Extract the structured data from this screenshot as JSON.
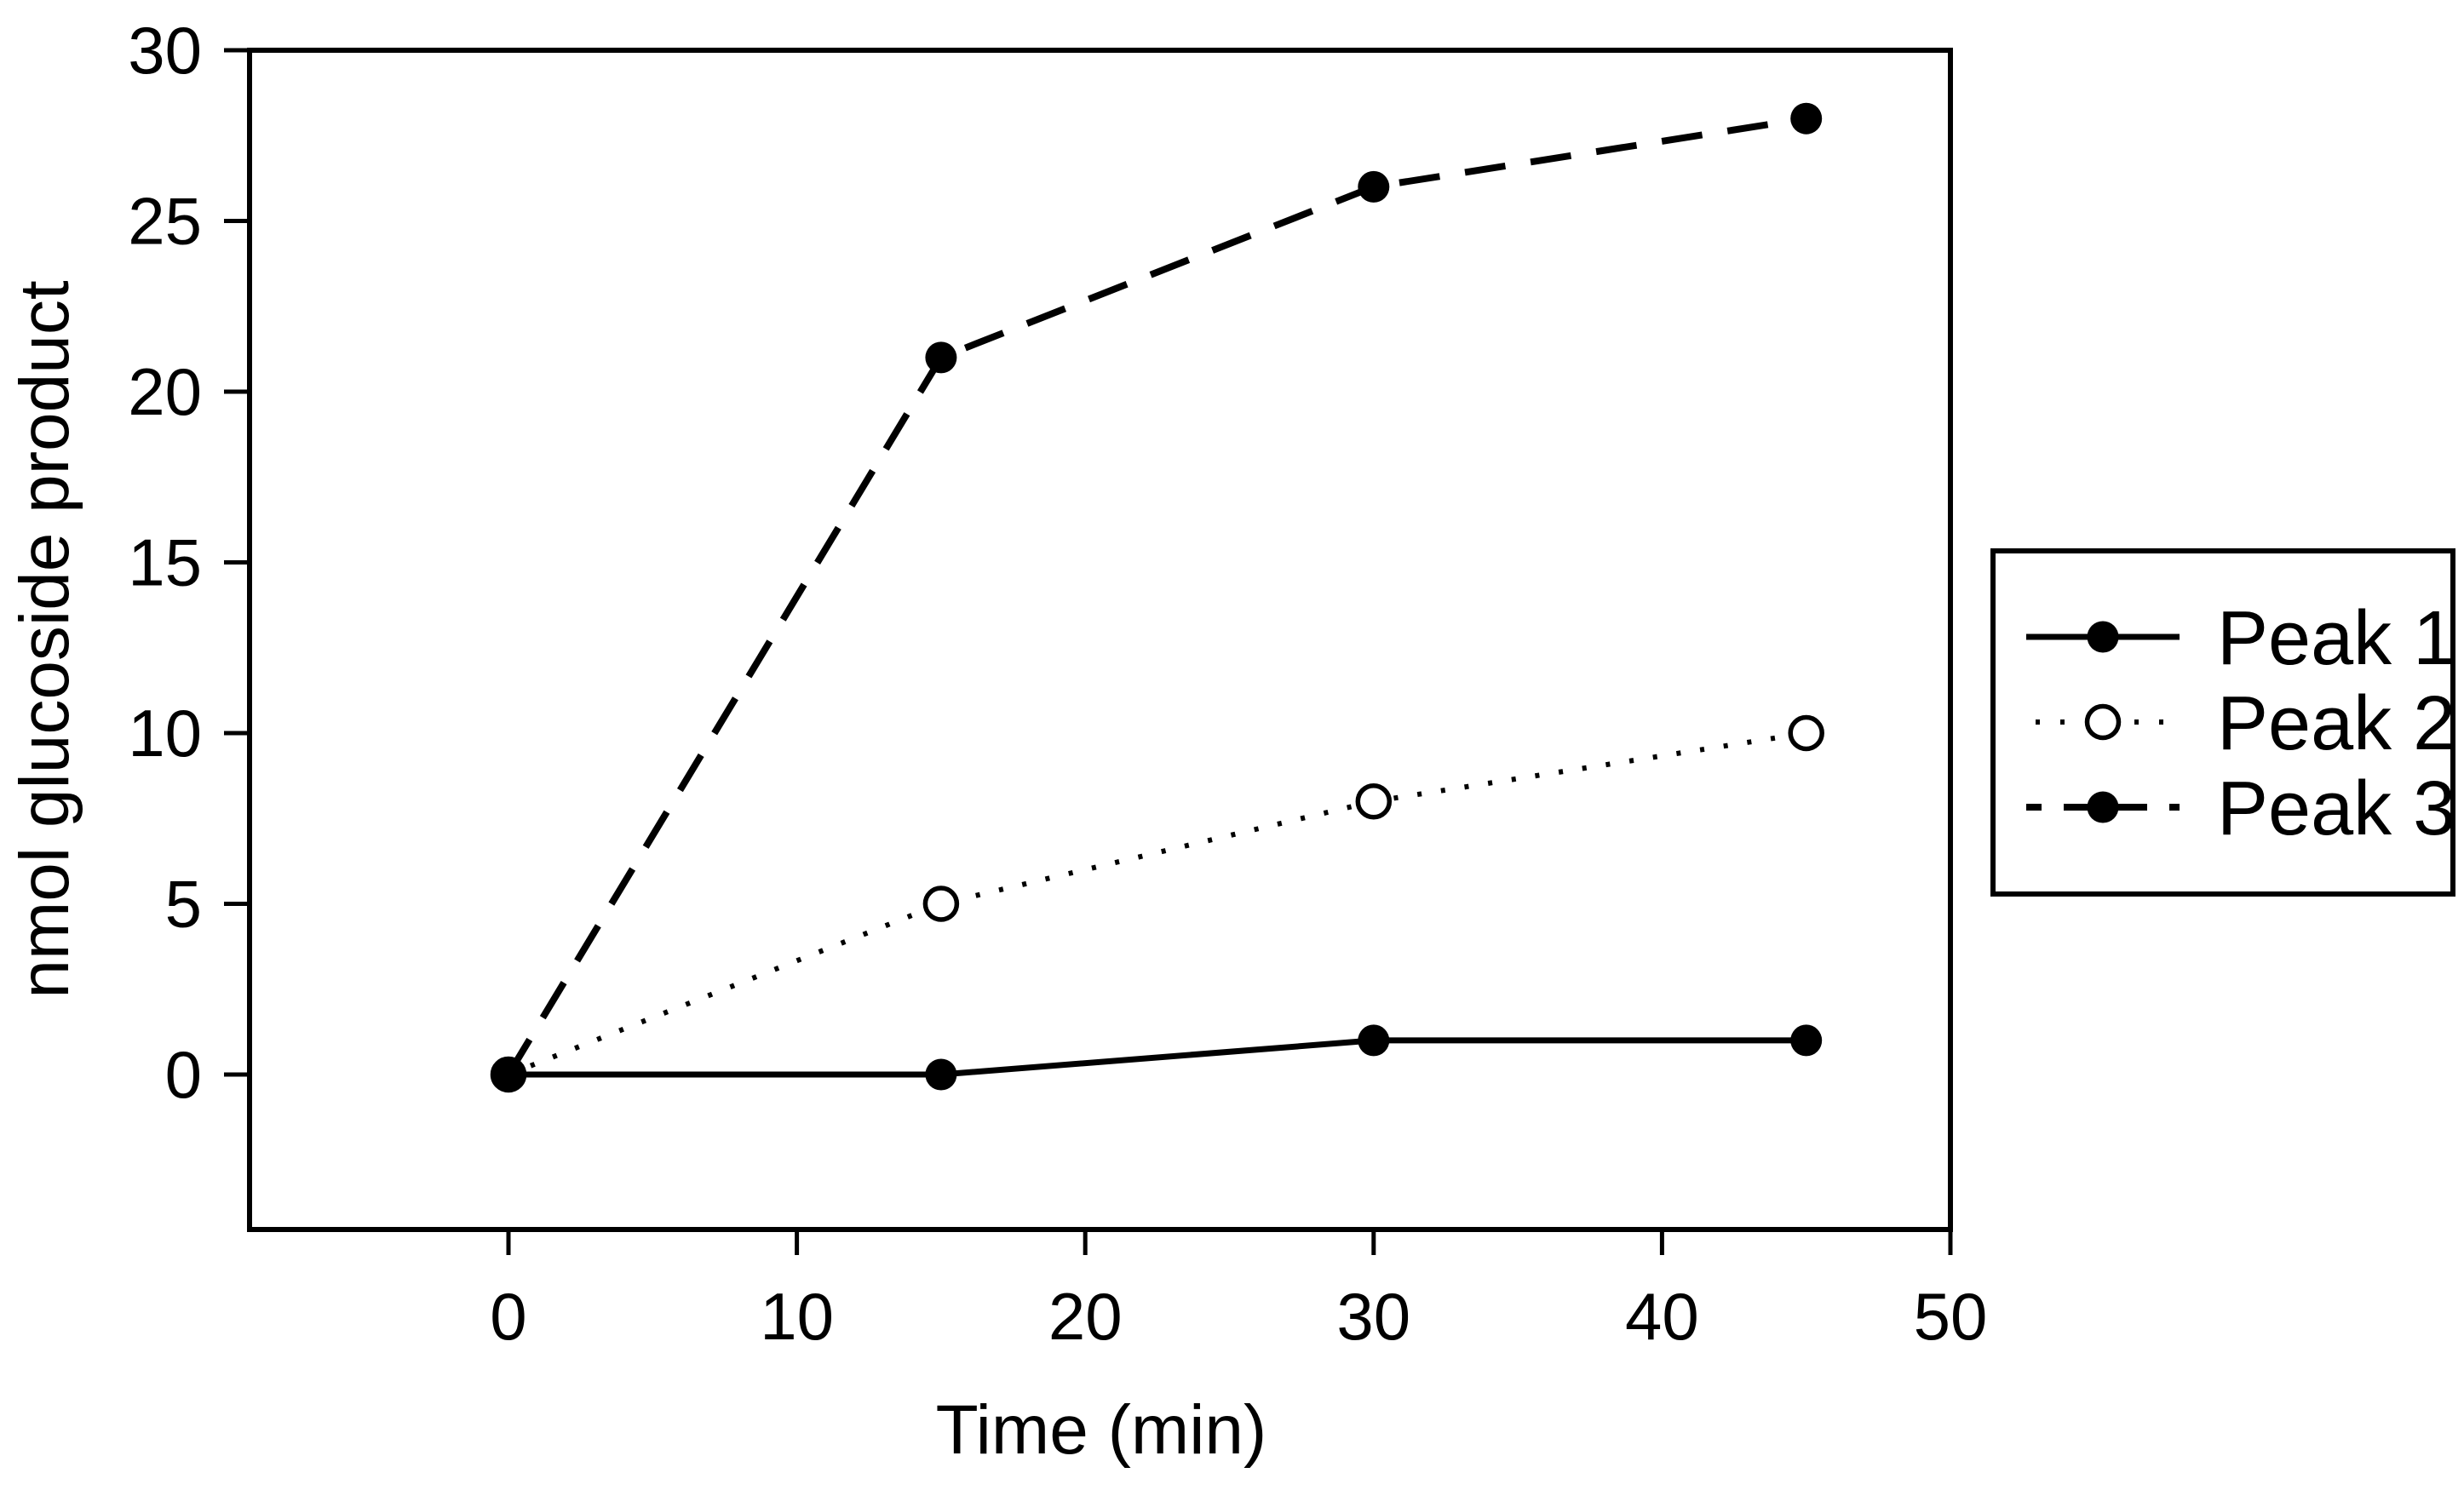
{
  "page": {
    "background": "#ffffff",
    "foreground": "#000000"
  },
  "chart_data": {
    "type": "line",
    "title": "",
    "xlabel": "Time (min)",
    "ylabel": "nmol glucoside product",
    "x": [
      0,
      15,
      30,
      45
    ],
    "series": [
      {
        "name": "Peak 1",
        "values": [
          0,
          0,
          1,
          1
        ],
        "line_style": "solid",
        "marker": "filled-circle"
      },
      {
        "name": "Peak 2",
        "values": [
          0,
          5,
          8,
          10
        ],
        "line_style": "dotted",
        "marker": "open-circle"
      },
      {
        "name": "Peak 3",
        "values": [
          0,
          21,
          26,
          28
        ],
        "line_style": "dashed",
        "marker": "filled-circle"
      }
    ],
    "x_ticks": [
      0,
      10,
      20,
      30,
      40,
      50
    ],
    "y_ticks": [
      0,
      5,
      10,
      15,
      20,
      25,
      30
    ],
    "xlim": [
      -9,
      50
    ],
    "ylim": [
      -4.55,
      30
    ],
    "grid": false,
    "legend_position": "outside-right",
    "colors": {
      "line": "#000000",
      "marker_fill": "#000000",
      "open_marker_fill": "#ffffff"
    }
  },
  "legend": {
    "entries": [
      "Peak 1",
      "Peak 2",
      "Peak 3"
    ]
  }
}
